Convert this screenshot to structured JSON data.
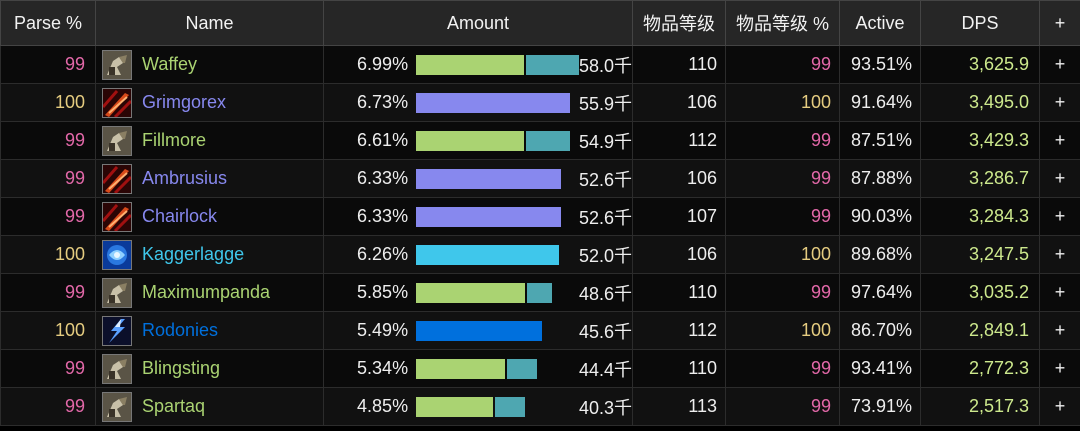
{
  "headers": {
    "parse": "Parse %",
    "name": "Name",
    "amount": "Amount",
    "ilvl": "物品等级",
    "ilvl_pct": "物品等级 %",
    "active": "Active",
    "dps": "DPS",
    "plus": "+"
  },
  "colors": {
    "parse_99": "#e268a8",
    "parse_100": "#e5cc80",
    "hunter": "#aad372",
    "warlock": "#8788ee",
    "mage": "#3fc7eb",
    "shaman": "#0070dd",
    "hunter_pet": "#4ea7b1"
  },
  "rows": [
    {
      "parse": "99",
      "name": "Waffey",
      "spec_icon": "hunter-icon",
      "class": "hunter",
      "amount_pct": "6.99%",
      "bar_main": 0.672,
      "bar_pet": 0.33,
      "amount": "58.0千",
      "ilvl": "110",
      "ilvl_pct": "99",
      "active": "93.51%",
      "dps": "3,625.9",
      "plus": "+"
    },
    {
      "parse": "100",
      "name": "Grimgorex",
      "spec_icon": "warlock-icon",
      "class": "warlock",
      "amount_pct": "6.73%",
      "bar_main": 0.962,
      "bar_pet": 0,
      "amount": "55.9千",
      "ilvl": "106",
      "ilvl_pct": "100",
      "active": "91.64%",
      "dps": "3,495.0",
      "plus": "+"
    },
    {
      "parse": "99",
      "name": "Fillmore",
      "spec_icon": "hunter-icon",
      "class": "hunter",
      "amount_pct": "6.61%",
      "bar_main": 0.672,
      "bar_pet": 0.272,
      "amount": "54.9千",
      "ilvl": "112",
      "ilvl_pct": "99",
      "active": "87.51%",
      "dps": "3,429.3",
      "plus": "+"
    },
    {
      "parse": "99",
      "name": "Ambrusius",
      "spec_icon": "warlock-icon",
      "class": "warlock",
      "amount_pct": "6.33%",
      "bar_main": 0.905,
      "bar_pet": 0,
      "amount": "52.6千",
      "ilvl": "106",
      "ilvl_pct": "99",
      "active": "87.88%",
      "dps": "3,286.7",
      "plus": "+"
    },
    {
      "parse": "99",
      "name": "Chairlock",
      "spec_icon": "warlock-icon",
      "class": "warlock",
      "amount_pct": "6.33%",
      "bar_main": 0.905,
      "bar_pet": 0,
      "amount": "52.6千",
      "ilvl": "107",
      "ilvl_pct": "99",
      "active": "90.03%",
      "dps": "3,284.3",
      "plus": "+"
    },
    {
      "parse": "100",
      "name": "Kaggerlagge",
      "spec_icon": "frost-mage-icon",
      "class": "mage",
      "amount_pct": "6.26%",
      "bar_main": 0.896,
      "bar_pet": 0,
      "amount": "52.0千",
      "ilvl": "106",
      "ilvl_pct": "100",
      "active": "89.68%",
      "dps": "3,247.5",
      "plus": "+"
    },
    {
      "parse": "99",
      "name": "Maximumpanda",
      "spec_icon": "hunter-icon",
      "class": "hunter",
      "amount_pct": "5.85%",
      "bar_main": 0.679,
      "bar_pet": 0.155,
      "amount": "48.6千",
      "ilvl": "110",
      "ilvl_pct": "99",
      "active": "97.64%",
      "dps": "3,035.2",
      "plus": "+"
    },
    {
      "parse": "100",
      "name": "Rodonies",
      "spec_icon": "elemental-shaman-icon",
      "class": "shaman",
      "amount_pct": "5.49%",
      "bar_main": 0.786,
      "bar_pet": 0,
      "amount": "45.6千",
      "ilvl": "112",
      "ilvl_pct": "100",
      "active": "86.70%",
      "dps": "2,849.1",
      "plus": "+"
    },
    {
      "parse": "99",
      "name": "Blingsting",
      "spec_icon": "hunter-icon",
      "class": "hunter",
      "amount_pct": "5.34%",
      "bar_main": 0.559,
      "bar_pet": 0.19,
      "amount": "44.4千",
      "ilvl": "110",
      "ilvl_pct": "99",
      "active": "93.41%",
      "dps": "2,772.3",
      "plus": "+"
    },
    {
      "parse": "99",
      "name": "Spartaq",
      "spec_icon": "hunter-icon",
      "class": "hunter",
      "amount_pct": "4.85%",
      "bar_main": 0.483,
      "bar_pet": 0.19,
      "amount": "40.3千",
      "ilvl": "113",
      "ilvl_pct": "99",
      "active": "73.91%",
      "dps": "2,517.3",
      "plus": "+"
    }
  ]
}
